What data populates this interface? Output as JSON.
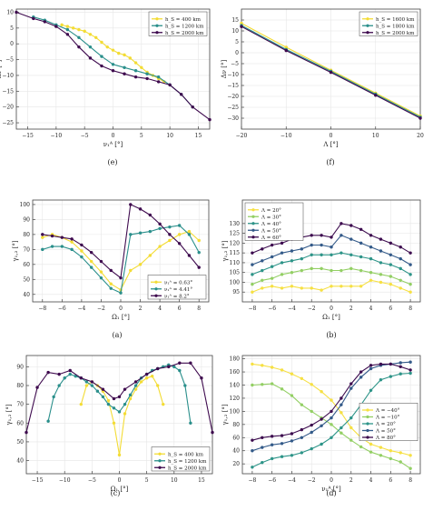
{
  "colors": {
    "yellow": "#f3dc35",
    "teal": "#2a8f8b",
    "purple": "#3e0a4e",
    "c1": "#f6e043",
    "c2": "#93cf64",
    "c3": "#2d9488",
    "c4": "#335a89",
    "c5": "#3d0c4f",
    "axis": "#444444",
    "grid": "#e6e6e6"
  },
  "chart_data": [
    {
      "id": "e",
      "type": "line",
      "caption": "(e)",
      "xlabel": "ν₁ᴬ [°]",
      "ylabel": "Δν [°]",
      "xlim": [
        -17,
        17
      ],
      "ylim": [
        -27,
        11
      ],
      "xticks": [
        -15,
        -10,
        -5,
        0,
        5,
        10,
        15
      ],
      "yticks": [
        10,
        5,
        0,
        -5,
        -10,
        -15,
        -20,
        -25
      ],
      "legend_position": "top-right",
      "series": [
        {
          "name": "h_S = 400 km",
          "color": "yellow",
          "x": [
            -9,
            -8,
            -7,
            -6,
            -5,
            -4,
            -3,
            -2,
            -1,
            0,
            1,
            2,
            3,
            4,
            5,
            6,
            7,
            8,
            9
          ],
          "y": [
            6,
            5.5,
            5,
            4.5,
            4,
            3,
            2,
            0.5,
            -1,
            -2,
            -3,
            -3.5,
            -4.5,
            -6,
            -7.5,
            -9,
            -10,
            -11,
            -12
          ]
        },
        {
          "name": "h_S = 1200 km",
          "color": "teal",
          "x": [
            -14,
            -12,
            -10,
            -8,
            -6,
            -4,
            -2,
            0,
            2,
            4,
            6,
            8,
            10,
            12,
            14
          ],
          "y": [
            8.5,
            7.5,
            6,
            4.5,
            2,
            -1,
            -4,
            -6.5,
            -7.5,
            -8.5,
            -9.5,
            -10.5,
            -13,
            -16,
            -20
          ]
        },
        {
          "name": "h_S = 2000 km",
          "color": "purple",
          "x": [
            -17,
            -14,
            -12,
            -10,
            -8,
            -6,
            -4,
            -2,
            0,
            2,
            4,
            6,
            8,
            10,
            12,
            14,
            17
          ],
          "y": [
            10,
            8,
            7,
            5.5,
            3,
            -1,
            -4.5,
            -7,
            -8.5,
            -9.5,
            -10.5,
            -11,
            -12,
            -13,
            -16,
            -20,
            -24
          ]
        }
      ]
    },
    {
      "id": "f",
      "type": "line",
      "caption": "(f)",
      "xlabel": "Λ [°]",
      "ylabel": "Δν [°]",
      "xlim": [
        -20,
        20
      ],
      "ylim": [
        -35,
        20
      ],
      "xticks": [
        -20,
        -10,
        0,
        10,
        20
      ],
      "yticks": [
        15,
        10,
        5,
        0,
        -5,
        -10,
        -15,
        -20,
        -25,
        -30
      ],
      "legend_position": "top-right",
      "series": [
        {
          "name": "h_S = 1600 km",
          "color": "yellow",
          "x": [
            -20,
            -10,
            0,
            10,
            20
          ],
          "y": [
            13.5,
            2.5,
            -8,
            -18.5,
            -29
          ]
        },
        {
          "name": "h_S = 1800 km",
          "color": "teal",
          "x": [
            -20,
            -10,
            0,
            10,
            20
          ],
          "y": [
            12.5,
            1.5,
            -8.5,
            -19,
            -29.5
          ]
        },
        {
          "name": "h_S = 2000 km",
          "color": "purple",
          "x": [
            -20,
            -10,
            0,
            10,
            20
          ],
          "y": [
            12,
            1,
            -9,
            -19.5,
            -30
          ]
        }
      ]
    },
    {
      "id": "a",
      "type": "line",
      "caption": "(a)",
      "xlabel": "Ω₁ [°]",
      "ylabel": "γ₁,₂ [°]",
      "xlim": [
        -9,
        9
      ],
      "ylim": [
        35,
        103
      ],
      "xticks": [
        -8,
        -6,
        -4,
        -2,
        0,
        2,
        4,
        6,
        8
      ],
      "yticks": [
        40,
        50,
        60,
        70,
        80,
        90,
        100
      ],
      "legend_position": "bottom-right",
      "series": [
        {
          "name": "ν₁ᴬ = 0.63°",
          "color": "yellow",
          "x": [
            -8,
            -7,
            -6,
            -5,
            -4,
            -3,
            -2,
            -1,
            0,
            1,
            2,
            3,
            4,
            5,
            6,
            7,
            8
          ],
          "y": [
            78,
            80,
            78,
            75,
            69,
            62,
            55,
            47,
            43,
            56,
            60,
            66,
            72,
            76,
            80,
            82,
            76
          ]
        },
        {
          "name": "ν₁ᴬ = 4.41°",
          "color": "teal",
          "x": [
            -8,
            -7,
            -6,
            -5,
            -4,
            -3,
            -2,
            -1,
            0,
            1,
            2,
            3,
            4,
            5,
            6,
            7,
            8
          ],
          "y": [
            70,
            72,
            72,
            70,
            65,
            58,
            51,
            44,
            41,
            80,
            81,
            82,
            84,
            85,
            86,
            80,
            68
          ]
        },
        {
          "name": "ν₁ᴬ = 8.2°",
          "color": "purple",
          "x": [
            -8,
            -7,
            -6,
            -5,
            -4,
            -3,
            -2,
            -1,
            0,
            1,
            2,
            3,
            4,
            5,
            6,
            7,
            8
          ],
          "y": [
            80,
            79,
            78,
            77,
            73,
            68,
            62,
            56,
            51,
            100,
            97,
            93,
            87,
            80,
            74,
            66,
            58
          ]
        }
      ]
    },
    {
      "id": "b",
      "type": "line",
      "caption": "(b)",
      "xlabel": "Ω₁ [°]",
      "ylabel": "γ₁,₂ [°]",
      "xlim": [
        -9,
        9
      ],
      "ylim": [
        90,
        142
      ],
      "xticks": [
        -8,
        -6,
        -4,
        -2,
        0,
        2,
        4,
        6,
        8
      ],
      "yticks": [
        95,
        100,
        105,
        110,
        115,
        120,
        125,
        130
      ],
      "legend_position": "top-left",
      "series": [
        {
          "name": "Λ = 20°",
          "color": "c1",
          "x": [
            -8,
            -7,
            -6,
            -5,
            -4,
            -3,
            -2,
            -1,
            0,
            1,
            2,
            3,
            4,
            5,
            6,
            7,
            8
          ],
          "y": [
            95,
            97,
            98,
            97,
            98,
            97,
            97,
            96,
            98,
            98,
            98,
            98,
            101,
            100,
            99,
            97,
            95
          ]
        },
        {
          "name": "Λ = 30°",
          "color": "c2",
          "x": [
            -8,
            -7,
            -6,
            -5,
            -4,
            -3,
            -2,
            -1,
            0,
            1,
            2,
            3,
            4,
            5,
            6,
            7,
            8
          ],
          "y": [
            99,
            101,
            102,
            104,
            105,
            106,
            107,
            107,
            106,
            106,
            107,
            106,
            105,
            104,
            103,
            101,
            99
          ]
        },
        {
          "name": "Λ = 40°",
          "color": "c3",
          "x": [
            -8,
            -7,
            -6,
            -5,
            -4,
            -3,
            -2,
            -1,
            0,
            1,
            2,
            3,
            4,
            5,
            6,
            7,
            8
          ],
          "y": [
            104,
            106,
            108,
            110,
            111,
            112,
            114,
            114,
            114,
            115,
            114,
            113,
            112,
            110,
            109,
            107,
            104
          ]
        },
        {
          "name": "Λ = 50°",
          "color": "c4",
          "x": [
            -8,
            -7,
            -6,
            -5,
            -4,
            -3,
            -2,
            -1,
            0,
            1,
            2,
            3,
            4,
            5,
            6,
            7,
            8
          ],
          "y": [
            109,
            111,
            113,
            115,
            116,
            117,
            119,
            119,
            118,
            124,
            122,
            120,
            118,
            116,
            114,
            112,
            109
          ]
        },
        {
          "name": "Λ = 60°",
          "color": "c5",
          "x": [
            -8,
            -7,
            -6,
            -5,
            -4,
            -3,
            -2,
            -1,
            0,
            1,
            2,
            3,
            4,
            5,
            6,
            7,
            8
          ],
          "y": [
            115,
            117,
            119,
            120,
            122,
            123,
            124,
            124,
            123,
            130,
            129,
            127,
            124,
            122,
            120,
            118,
            115
          ]
        }
      ]
    },
    {
      "id": "c",
      "type": "line",
      "caption": "(c)",
      "xlabel": "Ω₁ [°]",
      "ylabel": "γ₁,₂ [°]",
      "xlim": [
        -17,
        17
      ],
      "ylim": [
        33,
        96
      ],
      "xticks": [
        -15,
        -10,
        -5,
        0,
        5,
        10,
        15
      ],
      "yticks": [
        40,
        50,
        60,
        70,
        80,
        90
      ],
      "legend_position": "bottom-right",
      "series": [
        {
          "name": "h_S = 400 km",
          "color": "yellow",
          "x": [
            -7,
            -6,
            -5,
            -4,
            -3,
            -2,
            -1,
            0,
            1,
            2,
            3,
            4,
            5,
            6,
            7,
            8
          ],
          "y": [
            70,
            80,
            82,
            80,
            77,
            72,
            60,
            43,
            65,
            73,
            78,
            82,
            84,
            85,
            80,
            70
          ]
        },
        {
          "name": "h_S = 1200 km",
          "color": "teal",
          "x": [
            -13,
            -12,
            -11,
            -10,
            -9,
            -8,
            -7,
            -6,
            -5,
            -4,
            -3,
            -2,
            -1,
            0,
            1,
            2,
            3,
            4,
            5,
            6,
            7,
            8,
            9,
            10,
            11,
            12,
            13
          ],
          "y": [
            61,
            74,
            80,
            84,
            86,
            85,
            84,
            82,
            80,
            77,
            74,
            70,
            68,
            66,
            70,
            75,
            80,
            84,
            86,
            88,
            89,
            90,
            91,
            90,
            88,
            80,
            60
          ]
        },
        {
          "name": "h_S = 2000 km",
          "color": "purple",
          "x": [
            -17,
            -15,
            -13,
            -11,
            -9,
            -7,
            -5,
            -3,
            -1,
            0,
            1,
            3,
            5,
            7,
            9,
            11,
            13,
            15,
            17
          ],
          "y": [
            55,
            79,
            87,
            86,
            88,
            84,
            82,
            78,
            73,
            74,
            78,
            82,
            86,
            89,
            90,
            92,
            92,
            84,
            55
          ]
        }
      ]
    },
    {
      "id": "d",
      "type": "line",
      "caption": "(d)",
      "xlabel": "ν₁ᴬ [°]",
      "ylabel": "γ₁,₂ [°]",
      "xlim": [
        -9,
        9
      ],
      "ylim": [
        5,
        185
      ],
      "xticks": [
        -8,
        -6,
        -4,
        -2,
        0,
        2,
        4,
        6,
        8
      ],
      "yticks": [
        20,
        40,
        60,
        80,
        100,
        120,
        140,
        160,
        180
      ],
      "legend_position": "right",
      "series": [
        {
          "name": "Λ = −40°",
          "color": "c1",
          "x": [
            -8,
            -7,
            -6,
            -5,
            -4,
            -3,
            -2,
            -1,
            0,
            1,
            2,
            3,
            4,
            5,
            6,
            7,
            8
          ],
          "y": [
            172,
            170,
            167,
            163,
            157,
            150,
            141,
            130,
            117,
            98,
            75,
            60,
            50,
            45,
            40,
            37,
            33
          ]
        },
        {
          "name": "Λ = −10°",
          "color": "c2",
          "x": [
            -8,
            -7,
            -6,
            -5,
            -4,
            -3,
            -2,
            -1,
            0,
            1,
            2,
            3,
            4,
            5,
            6,
            7,
            8
          ],
          "y": [
            140,
            141,
            142,
            134,
            124,
            110,
            100,
            90,
            80,
            67,
            56,
            46,
            38,
            33,
            28,
            23,
            13
          ]
        },
        {
          "name": "Λ = 20°",
          "color": "c3",
          "x": [
            -8,
            -7,
            -6,
            -5,
            -4,
            -3,
            -2,
            -1,
            0,
            1,
            2,
            3,
            4,
            5,
            6,
            7,
            8
          ],
          "y": [
            15,
            22,
            28,
            31,
            33,
            37,
            43,
            50,
            60,
            75,
            90,
            110,
            132,
            148,
            153,
            157,
            158
          ]
        },
        {
          "name": "Λ = 50°",
          "color": "c4",
          "x": [
            -8,
            -7,
            -6,
            -5,
            -4,
            -3,
            -2,
            -1,
            0,
            1,
            2,
            3,
            4,
            5,
            6,
            7,
            8
          ],
          "y": [
            40,
            45,
            49,
            51,
            55,
            60,
            68,
            78,
            90,
            110,
            135,
            152,
            165,
            170,
            172,
            174,
            175
          ]
        },
        {
          "name": "Λ = 80°",
          "color": "c5",
          "x": [
            -8,
            -7,
            -6,
            -5,
            -4,
            -3,
            -2,
            -1,
            0,
            1,
            2,
            3,
            4,
            5,
            6,
            7,
            8
          ],
          "y": [
            56,
            60,
            62,
            63,
            66,
            72,
            79,
            88,
            100,
            120,
            142,
            160,
            170,
            172,
            172,
            168,
            163
          ]
        }
      ]
    }
  ]
}
